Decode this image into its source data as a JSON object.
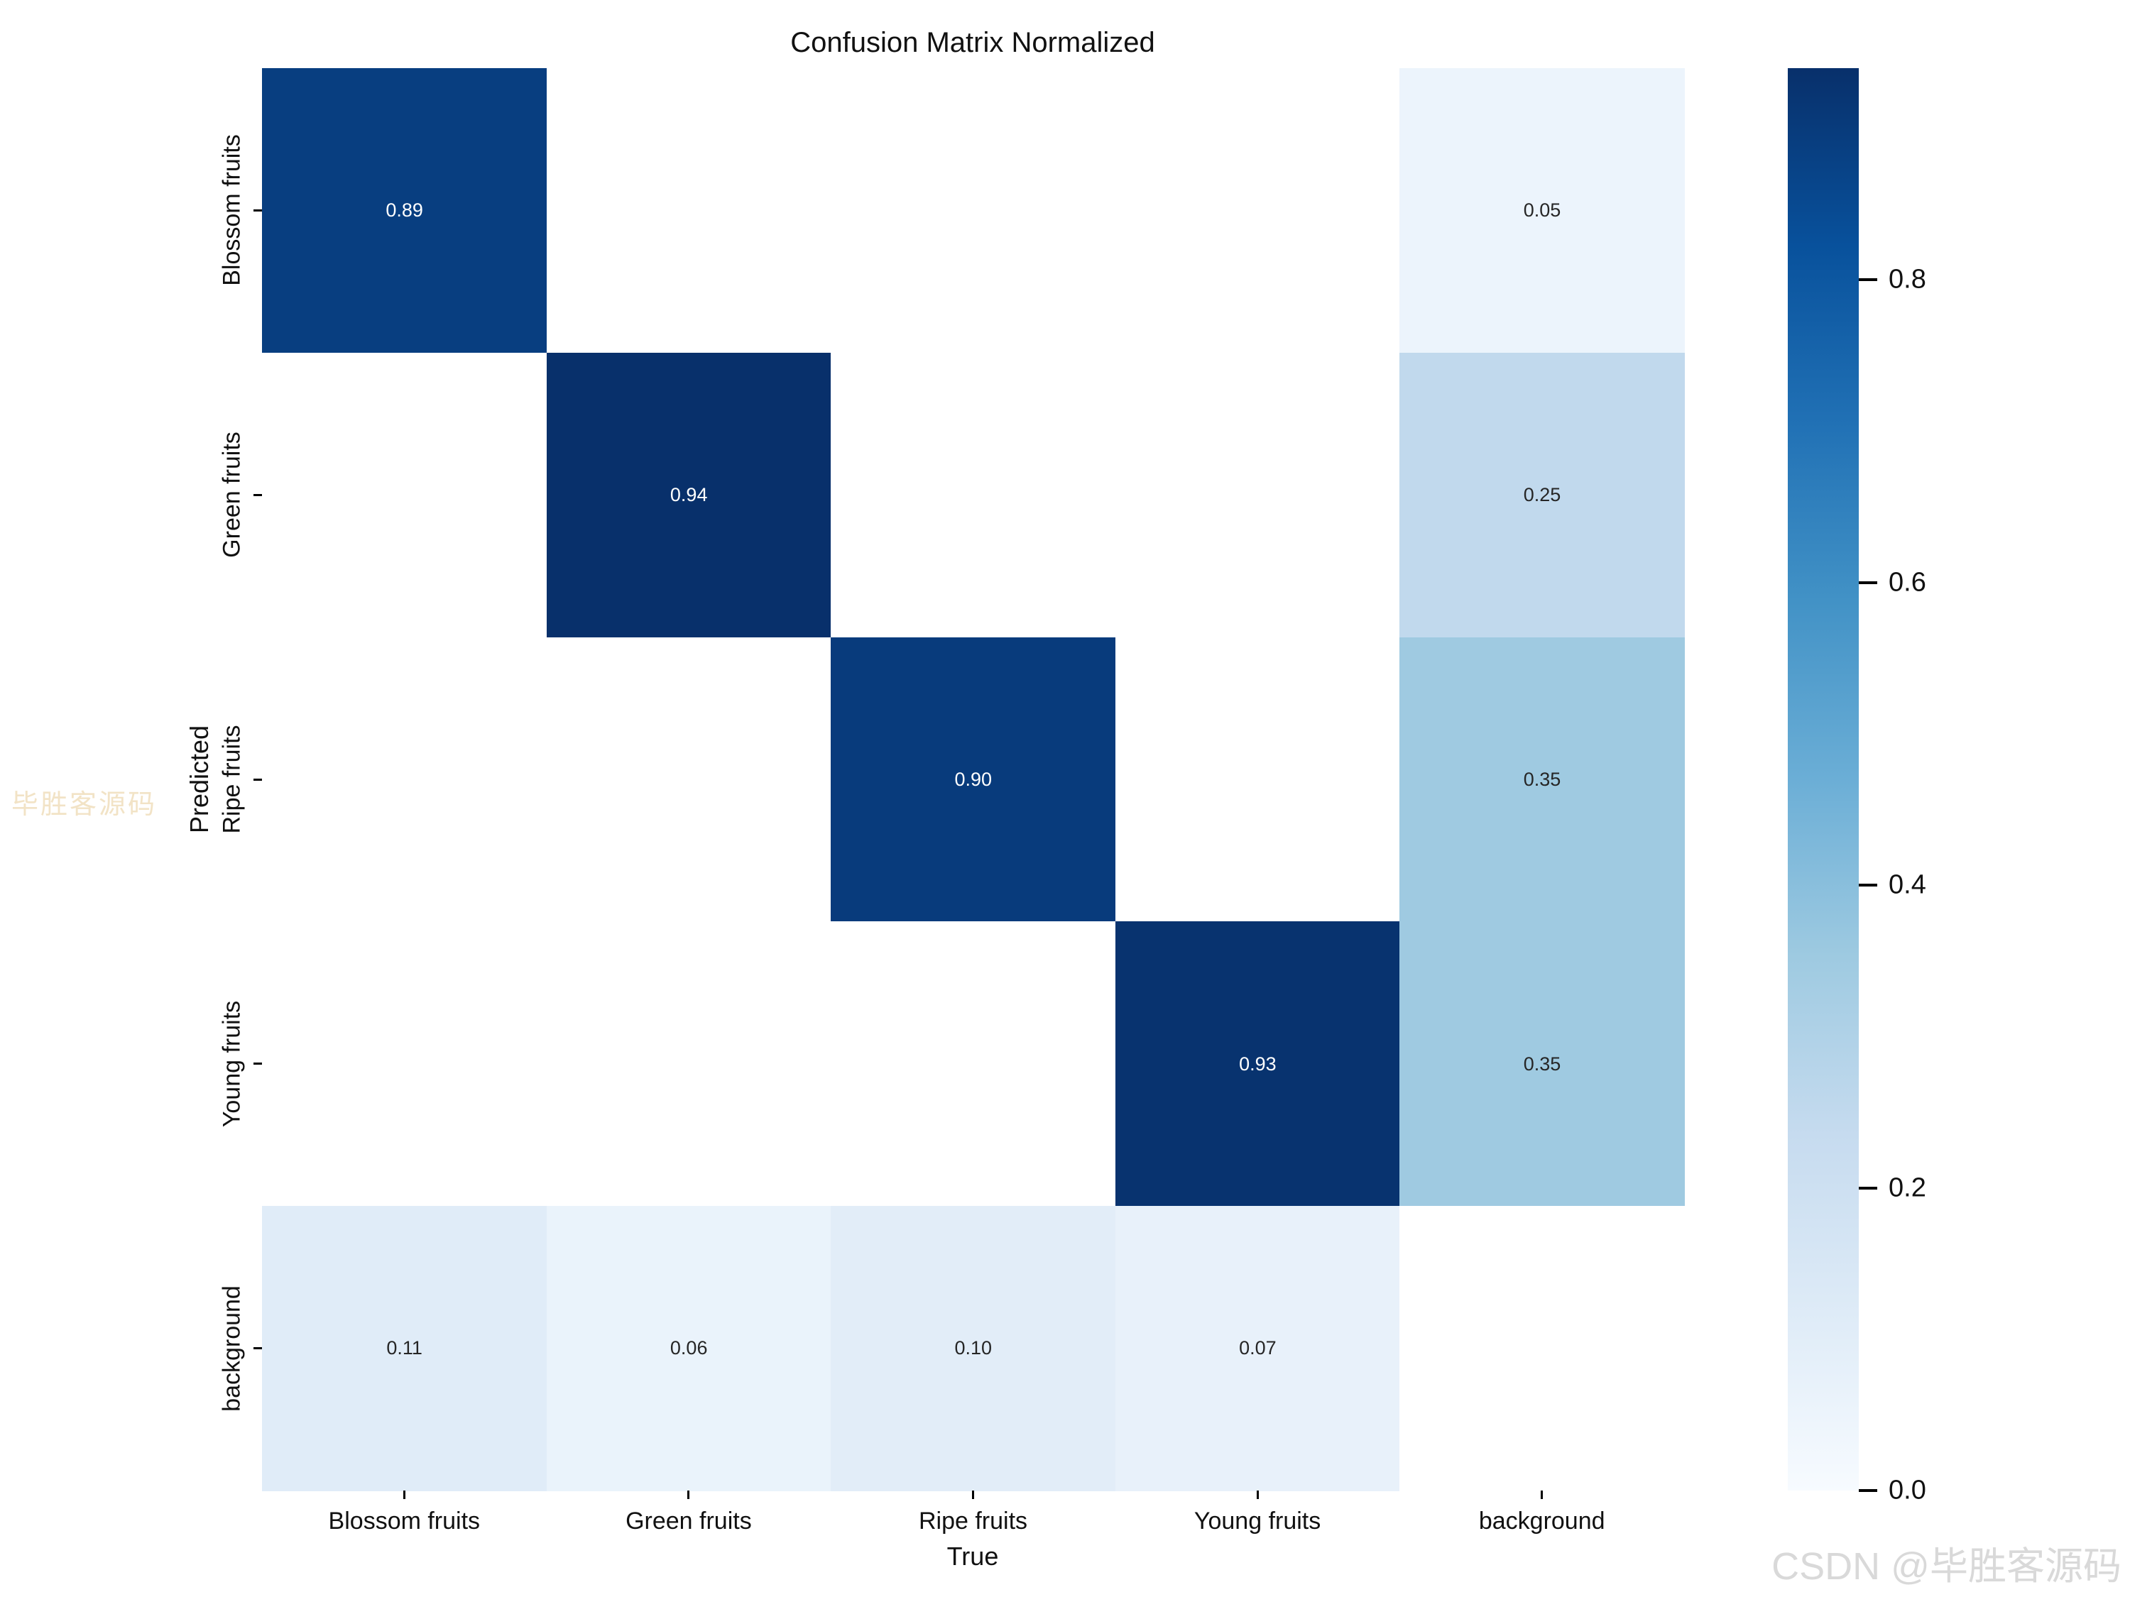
{
  "chart_data": {
    "type": "heatmap",
    "title": "Confusion Matrix Normalized",
    "xlabel": "True",
    "ylabel": "Predicted",
    "x_categories": [
      "Blossom fruits",
      "Green fruits",
      "Ripe fruits",
      "Young fruits",
      "background"
    ],
    "y_categories": [
      "Blossom fruits",
      "Green fruits",
      "Ripe fruits",
      "Young fruits",
      "background"
    ],
    "matrix": [
      [
        0.89,
        null,
        null,
        null,
        0.05
      ],
      [
        null,
        0.94,
        null,
        null,
        0.25
      ],
      [
        null,
        null,
        0.9,
        null,
        0.35
      ],
      [
        null,
        null,
        null,
        0.93,
        0.35
      ],
      [
        0.11,
        0.06,
        0.1,
        0.07,
        null
      ]
    ],
    "vmin": 0.0,
    "vmax": 0.94,
    "colormap": "Blues",
    "colorbar_ticks": [
      0.8,
      0.6,
      0.4,
      0.2,
      0.0
    ],
    "legend_position": "right-colorbar",
    "grid": false,
    "annotation_format": "two-decimals"
  },
  "watermarks": {
    "left": "毕胜客源码",
    "bottom_right": "CSDN @毕胜客源码"
  },
  "colors": {
    "figure_background": "#ffffff",
    "empty_cell": "#ffffff",
    "annot_light_text": "#ffffff",
    "annot_dark_text": "#262626",
    "tick_text": "#111111",
    "watermark_left": "#f2e3c6",
    "watermark_bottom_right": "#d9d9d9",
    "blues_stops": [
      "#f7fbff",
      "#deebf7",
      "#c6dbef",
      "#9ecae1",
      "#6baed6",
      "#4292c6",
      "#2171b5",
      "#08519c",
      "#08306b"
    ]
  }
}
